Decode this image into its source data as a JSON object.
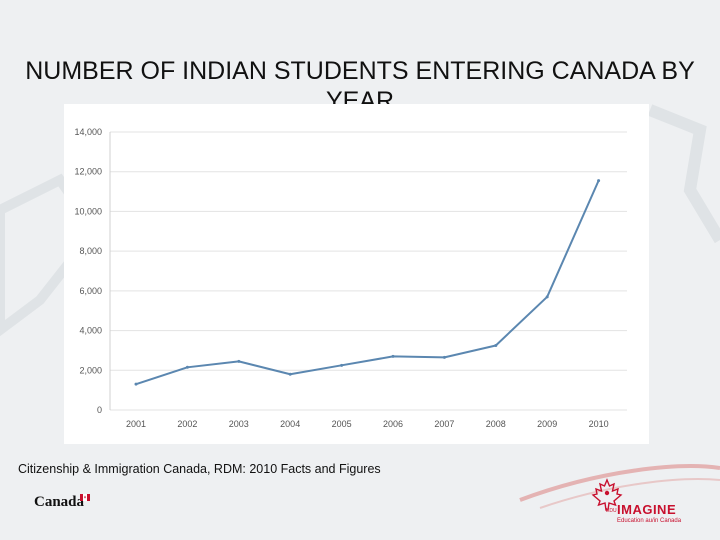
{
  "slide": {
    "title": "NUMBER OF INDIAN STUDENTS ENTERING CANADA BY YEAR",
    "source": "Citizenship & Immigration Canada, RDM: 2010 Facts and Figures"
  },
  "branding": {
    "canada_wordmark": "Canada",
    "imagine_prefix": "EDU",
    "imagine_word": "IMAGINE",
    "imagine_sub": "Education au/in Canada",
    "accent_color": "#c8102e"
  },
  "chart_data": {
    "type": "line",
    "title": "",
    "xlabel": "",
    "ylabel": "",
    "x": [
      "2001",
      "2002",
      "2003",
      "2004",
      "2005",
      "2006",
      "2007",
      "2008",
      "2009",
      "2010"
    ],
    "series": [
      {
        "values": [
          1300,
          2150,
          2450,
          1800,
          2250,
          2700,
          2650,
          3250,
          5700,
          11550
        ],
        "color": "#5b87b0"
      }
    ],
    "ylim": [
      0,
      14000
    ],
    "yticks": [
      0,
      2000,
      4000,
      6000,
      8000,
      10000,
      12000,
      14000
    ],
    "ytick_labels": [
      "0",
      "2,000",
      "4,000",
      "6,000",
      "8,000",
      "10,000",
      "12,000",
      "14,000"
    ],
    "grid": true,
    "legend": "none"
  }
}
